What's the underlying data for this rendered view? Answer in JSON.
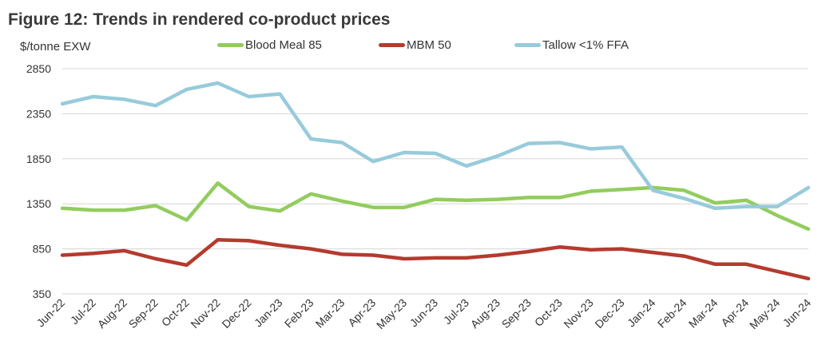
{
  "title": "Figure 12: Trends in rendered co-product prices",
  "ylabel": "$/tonne EXW",
  "chart_data": {
    "type": "line",
    "title": "Figure 12: Trends in rendered co-product prices",
    "ylabel": "$/tonne EXW",
    "xlabel": "",
    "ylim": [
      350,
      2850
    ],
    "yticks": [
      350,
      850,
      1350,
      1850,
      2350,
      2850
    ],
    "grid": "horizontal",
    "legend_position": "top",
    "x": [
      "Jun-22",
      "Jul-22",
      "Aug-22",
      "Sep-22",
      "Oct-22",
      "Nov-22",
      "Dec-22",
      "Jan-23",
      "Feb-23",
      "Mar-23",
      "Apr-23",
      "May-23",
      "Jun-23",
      "Jul-23",
      "Aug-23",
      "Sep-23",
      "Oct-23",
      "Nov-23",
      "Dec-23",
      "Jan-24",
      "Feb-24",
      "Mar-24",
      "Apr-24",
      "May-24",
      "Jun-24"
    ],
    "series": [
      {
        "name": "Blood Meal 85",
        "color": "#92cc5e",
        "values": [
          1300,
          1280,
          1280,
          1330,
          1170,
          1580,
          1320,
          1270,
          1460,
          1380,
          1310,
          1310,
          1400,
          1390,
          1400,
          1420,
          1420,
          1490,
          1510,
          1530,
          1500,
          1360,
          1390,
          1220,
          1070
        ]
      },
      {
        "name": "MBM 50",
        "color": "#b53a2e",
        "values": [
          780,
          800,
          830,
          740,
          670,
          950,
          940,
          890,
          850,
          790,
          780,
          740,
          750,
          750,
          780,
          820,
          870,
          840,
          850,
          810,
          770,
          680,
          680,
          600,
          520
        ]
      },
      {
        "name": "Tallow <1% FFA",
        "color": "#97cbdb",
        "values": [
          2460,
          2540,
          2510,
          2440,
          2620,
          2690,
          2540,
          2570,
          2070,
          2030,
          1820,
          1920,
          1910,
          1770,
          1880,
          2020,
          2030,
          1960,
          1980,
          1500,
          1410,
          1300,
          1320,
          1320,
          1530
        ]
      }
    ]
  }
}
